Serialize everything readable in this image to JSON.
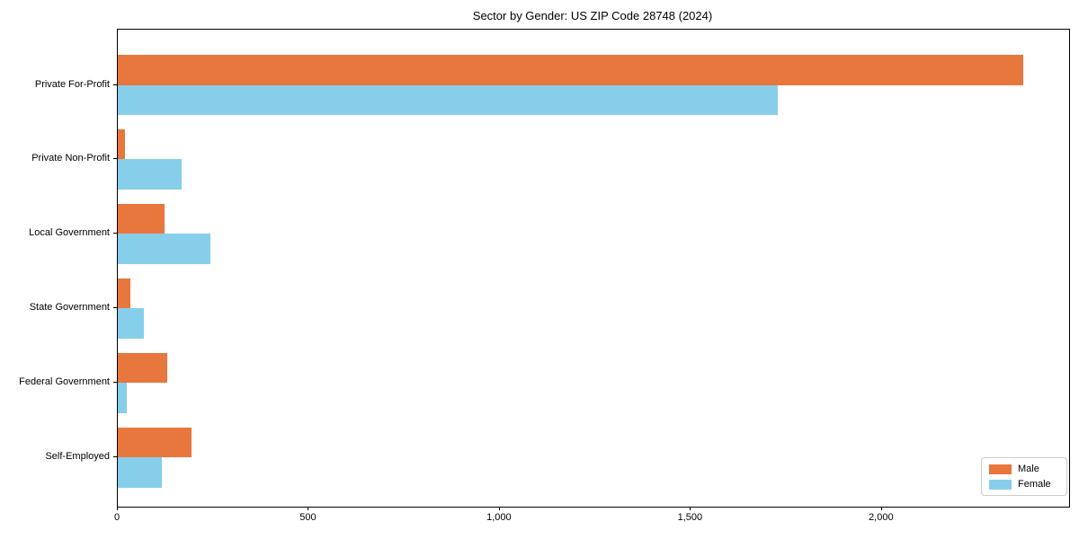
{
  "title": "Sector by Gender: US ZIP Code 28748 (2024)",
  "chart_data": {
    "type": "bar",
    "orientation": "horizontal",
    "title": "Sector by Gender: US ZIP Code 28748 (2024)",
    "xlabel": "",
    "ylabel": "",
    "categories": [
      "Private For-Profit",
      "Private Non-Profit",
      "Local Government",
      "State Government",
      "Federal Government",
      "Self-Employed"
    ],
    "series": [
      {
        "name": "Male",
        "color": "#e8773d",
        "values": [
          2370,
          20,
          123,
          33,
          130,
          193
        ]
      },
      {
        "name": "Female",
        "color": "#87ceeb",
        "values": [
          1727,
          167,
          243,
          68,
          24,
          116
        ]
      }
    ],
    "xlim": [
      0,
      2490
    ],
    "xticks": [
      0,
      500,
      1000,
      1500,
      2000
    ],
    "xtick_labels": [
      "0",
      "500",
      "1,000",
      "1,500",
      "2,000"
    ],
    "grid": false,
    "legend_position": "lower right"
  },
  "legend": {
    "items": [
      {
        "label": "Male",
        "color": "#e8773d"
      },
      {
        "label": "Female",
        "color": "#87ceeb"
      }
    ]
  }
}
